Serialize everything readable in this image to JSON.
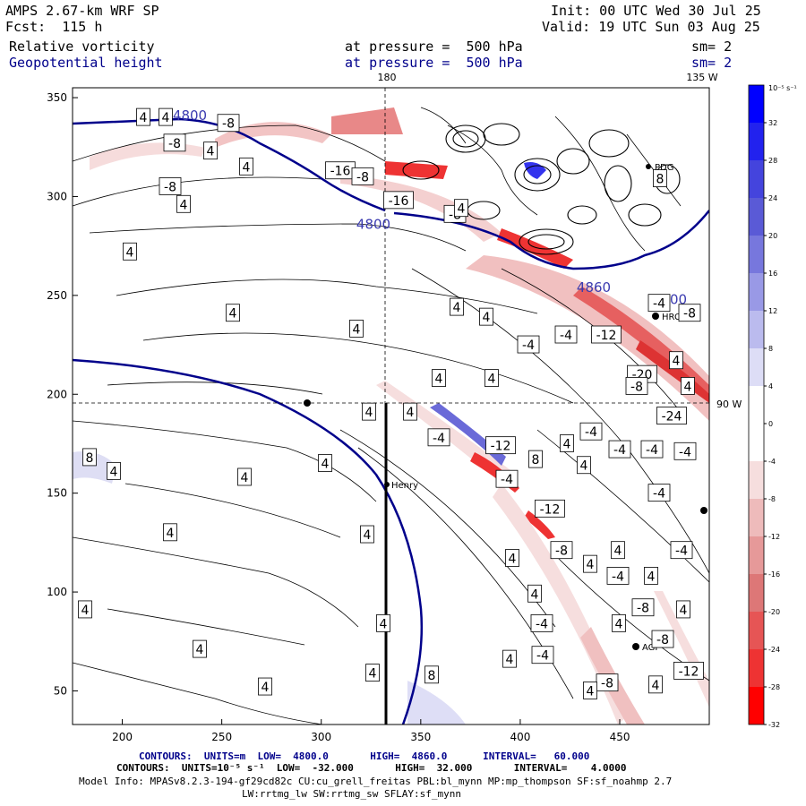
{
  "header": {
    "model_line": "AMPS 2.67-km WRF SP",
    "forecast_line": "Fcst:  115 h",
    "init_line": "Init: 00 UTC Wed 30 Jul 25",
    "valid_line": "Valid: 19 UTC Sun 03 Aug 25",
    "field1_name": "Relative vorticity",
    "field1_level": "at pressure =  500 hPa",
    "field1_smooth": "sm= 2",
    "field2_name": "Geopotential height",
    "field2_level": "at pressure =  500 hPa",
    "field2_smooth": "sm= 2"
  },
  "map_labels": {
    "lon_180": "180",
    "lon_135w": "135 W",
    "lon_90w": "90 W"
  },
  "stations": [
    "HRC",
    "Henry",
    "AGI",
    "PDG"
  ],
  "colorbar": {
    "unit_label": "10⁻⁵ s⁻¹",
    "ticks": [
      "32",
      "28",
      "24",
      "20",
      "16",
      "12",
      "8",
      "4",
      "0",
      "-4",
      "-8",
      "-12",
      "-16",
      "-20",
      "-24",
      "-28",
      "-32"
    ],
    "colors": [
      "#0000ff",
      "#2222ee",
      "#4444dd",
      "#5a5ad6",
      "#7777dd",
      "#9999e6",
      "#bbbbee",
      "#ddddf6",
      "#ffffff",
      "#ffffff",
      "#f6dede",
      "#eebbbb",
      "#e69999",
      "#dd7777",
      "#e65555",
      "#ee3333",
      "#ff0000"
    ]
  },
  "footer": {
    "contours1": "CONTOURS:  UNITS=m  LOW=  4800.0       HIGH=  4860.0      INTERVAL=   60.000",
    "contours2": "CONTOURS:  UNITS=10⁻⁵ s⁻¹  LOW=  -32.000       HIGH=  32.000       INTERVAL=    4.0000",
    "model_info": "Model Info: MPASv8.2.3-194-gf29cd82c CU:cu_grell_freitas PBL:bl_mynn MP:mp_thompson SF:sf_noahmp 2.7",
    "model_info2": "LW:rrtmg_lw SW:rrtmg_sw SFLAY:sf_mynn"
  },
  "chart_data": {
    "type": "heatmap",
    "title": "Relative vorticity / Geopotential height at 500 hPa",
    "xlabel": "",
    "ylabel": "",
    "xlim": [
      175,
      495
    ],
    "ylim": [
      33,
      355
    ],
    "x_ticks": [
      200,
      250,
      300,
      350,
      400,
      450
    ],
    "y_ticks": [
      50,
      100,
      150,
      200,
      250,
      300,
      350
    ],
    "grid": false,
    "geopotential_contours_m": [
      4800,
      4860
    ],
    "vorticity_contour_range": [
      -32,
      32
    ],
    "vorticity_contour_interval": 4,
    "contour_labels": [
      {
        "x": 160,
        "y": 340,
        "v": "4"
      },
      {
        "x": 185,
        "y": 340,
        "v": "4"
      },
      {
        "x": 255,
        "y": 337,
        "v": "-8"
      },
      {
        "x": 212,
        "y": 341,
        "v": "4800"
      },
      {
        "x": 195,
        "y": 327,
        "v": "-8"
      },
      {
        "x": 190,
        "y": 305,
        "v": "-8"
      },
      {
        "x": 235,
        "y": 323,
        "v": "4"
      },
      {
        "x": 275,
        "y": 315,
        "v": "4"
      },
      {
        "x": 205,
        "y": 296,
        "v": "4"
      },
      {
        "x": 145,
        "y": 272,
        "v": "4"
      },
      {
        "x": 380,
        "y": 313,
        "v": "-16"
      },
      {
        "x": 445,
        "y": 298,
        "v": "-16"
      },
      {
        "x": 405,
        "y": 310,
        "v": "-8"
      },
      {
        "x": 417,
        "y": 286,
        "v": "4800"
      },
      {
        "x": 508,
        "y": 291,
        "v": "-8"
      },
      {
        "x": 515,
        "y": 294,
        "v": "4"
      },
      {
        "x": 737,
        "y": 309,
        "v": "8"
      },
      {
        "x": 748,
        "y": 248,
        "v": "4800"
      },
      {
        "x": 663,
        "y": 254,
        "v": "4860"
      },
      {
        "x": 510,
        "y": 244,
        "v": "4"
      },
      {
        "x": 543,
        "y": 239,
        "v": "4"
      },
      {
        "x": 736,
        "y": 246,
        "v": "-4"
      },
      {
        "x": 770,
        "y": 241,
        "v": "-8"
      },
      {
        "x": 398,
        "y": 233,
        "v": "4"
      },
      {
        "x": 260,
        "y": 241,
        "v": "4"
      },
      {
        "x": 632,
        "y": 230,
        "v": "-4"
      },
      {
        "x": 677,
        "y": 230,
        "v": "-12"
      },
      {
        "x": 590,
        "y": 225,
        "v": "-4"
      },
      {
        "x": 755,
        "y": 217,
        "v": "4"
      },
      {
        "x": 717,
        "y": 210,
        "v": "-20"
      },
      {
        "x": 490,
        "y": 208,
        "v": "4"
      },
      {
        "x": 549,
        "y": 208,
        "v": "4"
      },
      {
        "x": 768,
        "y": 204,
        "v": "4"
      },
      {
        "x": 711,
        "y": 204,
        "v": "-8"
      },
      {
        "x": 412,
        "y": 191,
        "v": "4"
      },
      {
        "x": 458,
        "y": 191,
        "v": "4"
      },
      {
        "x": 750,
        "y": 189,
        "v": "-24"
      },
      {
        "x": 660,
        "y": 181,
        "v": "-4"
      },
      {
        "x": 490,
        "y": 178,
        "v": "-4"
      },
      {
        "x": 633,
        "y": 175,
        "v": "4"
      },
      {
        "x": 559,
        "y": 174,
        "v": "-12"
      },
      {
        "x": 692,
        "y": 172,
        "v": "-4"
      },
      {
        "x": 728,
        "y": 172,
        "v": "-4"
      },
      {
        "x": 765,
        "y": 171,
        "v": "-4"
      },
      {
        "x": 363,
        "y": 165,
        "v": "4"
      },
      {
        "x": 598,
        "y": 167,
        "v": "8"
      },
      {
        "x": 100,
        "y": 168,
        "v": "8"
      },
      {
        "x": 127,
        "y": 161,
        "v": "4"
      },
      {
        "x": 273,
        "y": 158,
        "v": "4"
      },
      {
        "x": 652,
        "y": 164,
        "v": "4"
      },
      {
        "x": 566,
        "y": 157,
        "v": "-4"
      },
      {
        "x": 736,
        "y": 150,
        "v": "-4"
      },
      {
        "x": 614,
        "y": 142,
        "v": "-12"
      },
      {
        "x": 190,
        "y": 130,
        "v": "4"
      },
      {
        "x": 410,
        "y": 129,
        "v": "4"
      },
      {
        "x": 761,
        "y": 121,
        "v": "-4"
      },
      {
        "x": 627,
        "y": 121,
        "v": "-8"
      },
      {
        "x": 690,
        "y": 121,
        "v": "4"
      },
      {
        "x": 572,
        "y": 117,
        "v": "4"
      },
      {
        "x": 659,
        "y": 114,
        "v": "4"
      },
      {
        "x": 690,
        "y": 108,
        "v": "-4"
      },
      {
        "x": 727,
        "y": 108,
        "v": "4"
      },
      {
        "x": 597,
        "y": 99,
        "v": "4"
      },
      {
        "x": 718,
        "y": 92,
        "v": "-8"
      },
      {
        "x": 95,
        "y": 91,
        "v": "4"
      },
      {
        "x": 763,
        "y": 91,
        "v": "4"
      },
      {
        "x": 428,
        "y": 84,
        "v": "4"
      },
      {
        "x": 605,
        "y": 84,
        "v": "-4"
      },
      {
        "x": 691,
        "y": 84,
        "v": "4"
      },
      {
        "x": 740,
        "y": 76,
        "v": "-8"
      },
      {
        "x": 223,
        "y": 71,
        "v": "4"
      },
      {
        "x": 606,
        "y": 68,
        "v": "-4"
      },
      {
        "x": 569,
        "y": 66,
        "v": "4"
      },
      {
        "x": 416,
        "y": 59,
        "v": "4"
      },
      {
        "x": 482,
        "y": 58,
        "v": "8"
      },
      {
        "x": 769,
        "y": 60,
        "v": "-12"
      },
      {
        "x": 296,
        "y": 52,
        "v": "4"
      },
      {
        "x": 678,
        "y": 54,
        "v": "-8"
      },
      {
        "x": 732,
        "y": 53,
        "v": "4"
      },
      {
        "x": 659,
        "y": 50,
        "v": "4"
      }
    ]
  }
}
